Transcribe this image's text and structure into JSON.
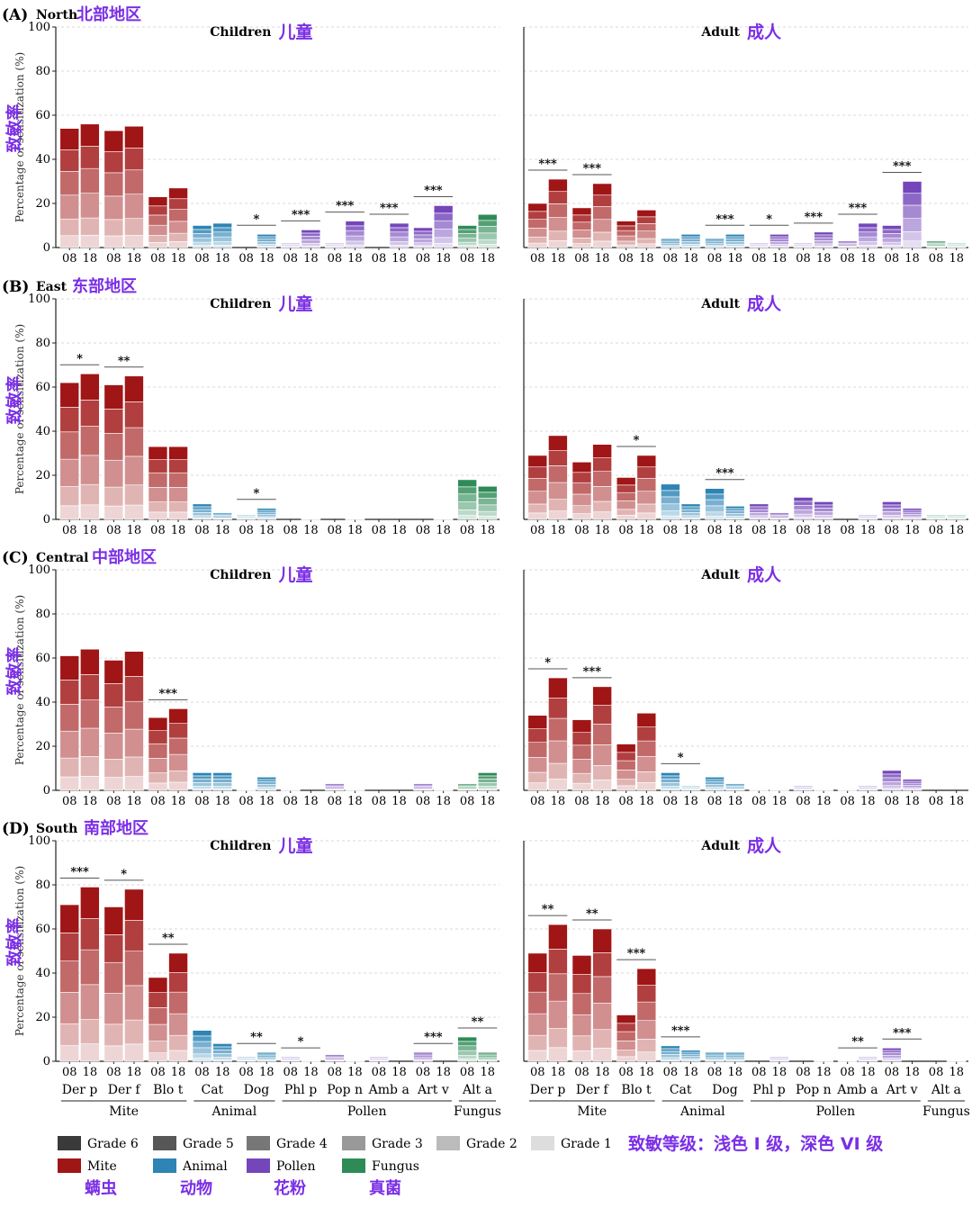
{
  "colors": {
    "mite": "#a01515",
    "animal": "#2d84b5",
    "pollen": "#7446ba",
    "fungus": "#2e8b57",
    "annotation_cn": "#7b2ee6",
    "grade_gray": [
      "#3a3a3a",
      "#575757",
      "#777777",
      "#999999",
      "#bbbbbb",
      "#dddddd"
    ]
  },
  "panels": [
    {
      "letter": "(A)",
      "region_en": "North",
      "region_cn": "北部地区"
    },
    {
      "letter": "(B)",
      "region_en": "East",
      "region_cn": "东部地区"
    },
    {
      "letter": "(C)",
      "region_en": "Central",
      "region_cn": "中部地区"
    },
    {
      "letter": "(D)",
      "region_en": "South",
      "region_cn": "南部地区"
    }
  ],
  "subtitles": {
    "children_en": "Children",
    "children_cn": "儿童",
    "adult_en": "Adult",
    "adult_cn": "成人"
  },
  "ylabel_en": "Percentage of sensitization (%)",
  "ylabel_cn": "致敏率",
  "y_ticks": [
    "0",
    "20",
    "40",
    "60",
    "80",
    "100"
  ],
  "year_labels": [
    "08",
    "18"
  ],
  "allergens": [
    "Der p",
    "Der f",
    "Blo t",
    "Cat",
    "Dog",
    "Phl p",
    "Pop n",
    "Amb a",
    "Art v",
    "Alt a"
  ],
  "allergen_groups": [
    {
      "name": "Mite",
      "members": [
        "Der p",
        "Der f",
        "Blo t"
      ]
    },
    {
      "name": "Animal",
      "members": [
        "Cat",
        "Dog"
      ]
    },
    {
      "name": "Pollen",
      "members": [
        "Phl p",
        "Pop n",
        "Amb a",
        "Art v"
      ]
    },
    {
      "name": "Fungus",
      "members": [
        "Alt a"
      ]
    }
  ],
  "legend": {
    "grades": [
      "Grade 6",
      "Grade 5",
      "Grade 4",
      "Grade 3",
      "Grade 2",
      "Grade 1"
    ],
    "categories": [
      {
        "en": "Mite",
        "cn": "螨虫",
        "key": "mite"
      },
      {
        "en": "Animal",
        "cn": "动物",
        "key": "animal"
      },
      {
        "en": "Pollen",
        "cn": "花粉",
        "key": "pollen"
      },
      {
        "en": "Fungus",
        "cn": "真菌",
        "key": "fungus"
      }
    ],
    "note_cn": "致敏等级：浅色 I 级，深色 VI 级"
  },
  "chart_data": {
    "type": "bar",
    "stacked_by": "sensitization grade (Grade 1 bottom ... Grade 6 top)",
    "ylim": [
      0,
      100
    ],
    "x_pairs": [
      "2008",
      "2018"
    ],
    "panels": [
      {
        "region": "North",
        "children": {
          "totals": [
            [
              54,
              56
            ],
            [
              53,
              55
            ],
            [
              23,
              27
            ],
            [
              10,
              11
            ],
            [
              0,
              6
            ],
            [
              2,
              8
            ],
            [
              2,
              12
            ],
            [
              0,
              11
            ],
            [
              9,
              19
            ],
            [
              10,
              15
            ]
          ],
          "sig": [
            null,
            null,
            null,
            null,
            "*",
            "***",
            "***",
            "***",
            "***",
            null
          ]
        },
        "adult": {
          "totals": [
            [
              20,
              31
            ],
            [
              18,
              29
            ],
            [
              12,
              17
            ],
            [
              4,
              6
            ],
            [
              4,
              6
            ],
            [
              2,
              6
            ],
            [
              2,
              7
            ],
            [
              3,
              11
            ],
            [
              10,
              30
            ],
            [
              3,
              2
            ]
          ],
          "sig": [
            "***",
            "***",
            null,
            null,
            "***",
            "*",
            "***",
            "***",
            "***",
            null
          ]
        }
      },
      {
        "region": "East",
        "children": {
          "totals": [
            [
              62,
              66
            ],
            [
              61,
              65
            ],
            [
              33,
              33
            ],
            [
              7,
              3
            ],
            [
              2,
              5
            ],
            [
              0,
              1
            ],
            [
              0,
              1
            ],
            [
              0,
              0
            ],
            [
              0,
              1
            ],
            [
              18,
              15
            ]
          ],
          "sig": [
            "*",
            "**",
            null,
            null,
            "*",
            null,
            null,
            null,
            null,
            null
          ]
        },
        "adult": {
          "totals": [
            [
              29,
              38
            ],
            [
              26,
              34
            ],
            [
              19,
              29
            ],
            [
              16,
              7
            ],
            [
              14,
              6
            ],
            [
              7,
              3
            ],
            [
              10,
              8
            ],
            [
              0,
              2
            ],
            [
              8,
              5
            ],
            [
              2,
              2
            ]
          ],
          "sig": [
            null,
            null,
            "*",
            null,
            "***",
            null,
            null,
            null,
            null,
            null
          ]
        }
      },
      {
        "region": "Central",
        "children": {
          "totals": [
            [
              61,
              64
            ],
            [
              59,
              63
            ],
            [
              33,
              37
            ],
            [
              8,
              8
            ],
            [
              1,
              6
            ],
            [
              1,
              0
            ],
            [
              3,
              1
            ],
            [
              0,
              0
            ],
            [
              3,
              1
            ],
            [
              3,
              8
            ]
          ],
          "sig": [
            null,
            null,
            "***",
            null,
            null,
            null,
            null,
            null,
            null,
            null
          ]
        },
        "adult": {
          "totals": [
            [
              34,
              51
            ],
            [
              32,
              47
            ],
            [
              21,
              35
            ],
            [
              8,
              2
            ],
            [
              6,
              3
            ],
            [
              1,
              1
            ],
            [
              2,
              1
            ],
            [
              1,
              2
            ],
            [
              9,
              5
            ],
            [
              0,
              0
            ]
          ],
          "sig": [
            "*",
            "***",
            null,
            "*",
            null,
            null,
            null,
            null,
            null,
            null
          ]
        }
      },
      {
        "region": "South",
        "children": {
          "totals": [
            [
              71,
              79
            ],
            [
              70,
              78
            ],
            [
              38,
              49
            ],
            [
              14,
              8
            ],
            [
              2,
              4
            ],
            [
              2,
              1
            ],
            [
              3,
              1
            ],
            [
              2,
              0
            ],
            [
              4,
              0
            ],
            [
              11,
              4
            ]
          ],
          "sig": [
            "***",
            "*",
            "**",
            null,
            "**",
            "*",
            null,
            null,
            "***",
            "**"
          ]
        },
        "adult": {
          "totals": [
            [
              49,
              62
            ],
            [
              48,
              60
            ],
            [
              21,
              42
            ],
            [
              7,
              5
            ],
            [
              4,
              4
            ],
            [
              0,
              2
            ],
            [
              0,
              1
            ],
            [
              1,
              2
            ],
            [
              6,
              0
            ],
            [
              0,
              1
            ]
          ],
          "sig": [
            "**",
            "**",
            "***",
            "***",
            null,
            null,
            null,
            "**",
            "***",
            null
          ]
        }
      }
    ]
  }
}
